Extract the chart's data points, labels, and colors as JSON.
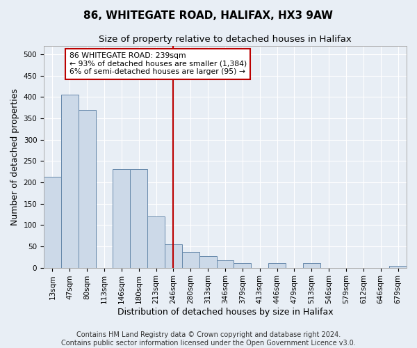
{
  "title": "86, WHITEGATE ROAD, HALIFAX, HX3 9AW",
  "subtitle": "Size of property relative to detached houses in Halifax",
  "xlabel": "Distribution of detached houses by size in Halifax",
  "ylabel": "Number of detached properties",
  "bar_color": "#ccd9e8",
  "bar_edge_color": "#6688aa",
  "background_color": "#e8eef5",
  "categories": [
    "13sqm",
    "47sqm",
    "80sqm",
    "113sqm",
    "146sqm",
    "180sqm",
    "213sqm",
    "246sqm",
    "280sqm",
    "313sqm",
    "346sqm",
    "379sqm",
    "413sqm",
    "446sqm",
    "479sqm",
    "513sqm",
    "546sqm",
    "579sqm",
    "612sqm",
    "646sqm",
    "679sqm"
  ],
  "values": [
    213,
    405,
    370,
    0,
    230,
    230,
    120,
    55,
    37,
    27,
    17,
    10,
    0,
    10,
    0,
    10,
    0,
    0,
    0,
    0,
    5
  ],
  "ylim": [
    0,
    520
  ],
  "yticks": [
    0,
    50,
    100,
    150,
    200,
    250,
    300,
    350,
    400,
    450,
    500
  ],
  "vline_x": 7.0,
  "vline_color": "#bb0000",
  "annotation_text": "86 WHITEGATE ROAD: 239sqm\n← 93% of detached houses are smaller (1,384)\n6% of semi-detached houses are larger (95) →",
  "annotation_box_color": "#ffffff",
  "annotation_box_edge": "#bb0000",
  "footer_line1": "Contains HM Land Registry data © Crown copyright and database right 2024.",
  "footer_line2": "Contains public sector information licensed under the Open Government Licence v3.0.",
  "grid_color": "#ffffff",
  "title_fontsize": 11,
  "subtitle_fontsize": 9.5,
  "axis_label_fontsize": 9,
  "tick_fontsize": 7.5,
  "footer_fontsize": 7
}
